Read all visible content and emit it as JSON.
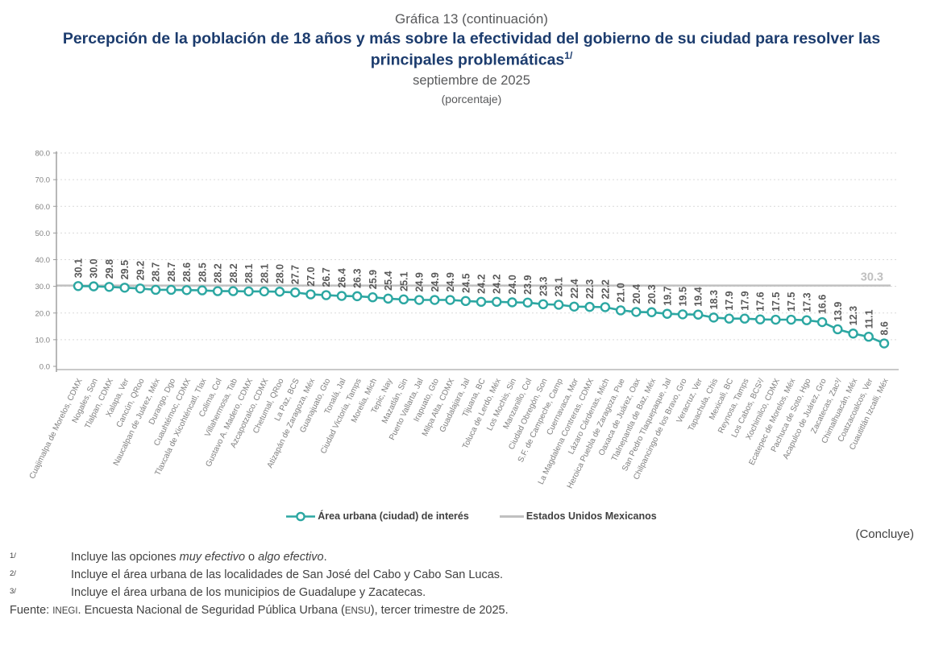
{
  "header": {
    "pretitle": "Gráfica 13 (continuación)",
    "title": "Percepción de la población de 18 años y más sobre la efectividad del gobierno de su ciudad para resolver las principales problemáticas",
    "title_sup": "1/",
    "subtitle": "septiembre de 2025",
    "unit": "(porcentaje)"
  },
  "chart_data": {
    "type": "line",
    "title": "Percepción de la población de 18 años y más sobre la efectividad del gobierno de su ciudad para resolver las principales problemáticas, septiembre de 2025 (porcentaje)",
    "xlabel": "",
    "ylabel": "",
    "ylim": [
      0,
      80
    ],
    "yticks": [
      0,
      10,
      20,
      30,
      40,
      50,
      60,
      70,
      80
    ],
    "grid": "horizontal-dashed",
    "legend_position": "bottom",
    "value_labels": "rotated-90-above-points",
    "categories": [
      "Cuajimalpa de Morelos, CDMX",
      "Nogales, Son",
      "Tlalpan, CDMX",
      "Xalapa, Ver",
      "Cancún, QRoo",
      "Naucalpan de Juárez, Méx",
      "Durango, Dgo",
      "Cuauhtémoc, CDMX",
      "Tlaxcala de Xicohténcatl, Tlax",
      "Colima, Col",
      "Villahermosa, Tab",
      "Gustavo A. Madero, CDMX",
      "Azcapotzalco, CDMX",
      "Chetumal, QRoo",
      "La Paz, BCS",
      "Atizapán de Zaragoza, Méx",
      "Guanajuato, Gto",
      "Tonalá, Jal",
      "Ciudad Victoria, Tamps",
      "Morelia, Mich",
      "Tepic, Nay",
      "Mazatlán, Sin",
      "Puerto Vallarta, Jal",
      "Irapuato, Gto",
      "Milpa Alta, CDMX",
      "Guadalajara, Jal",
      "Tijuana, BC",
      "Toluca de Lerdo, Méx",
      "Los Mochis, Sin",
      "Manzanillo, Col",
      "Ciudad Obregón, Son",
      "S.F. de Campeche, Camp",
      "Cuernavaca, Mor",
      "La Magdalena Contreras, CDMX",
      "Lázaro Cárdenas, Mich",
      "Heroica Puebla de Zaragoza, Pue",
      "Oaxaca de Juárez, Oax",
      "Tlalnepantla de Baz, Méx",
      "San Pedro Tlaquepaque, Jal",
      "Chilpancingo de los Bravo, Gro",
      "Veracruz, Ver",
      "Tapachula, Chis",
      "Mexicali, BC",
      "Reynosa, Tamps",
      "Los Cabos, BCS²/",
      "Xochimilco, CDMX",
      "Ecatepec de Morelos, Méx",
      "Pachuca de Soto, Hgo",
      "Acapulco de Juárez, Gro",
      "Zacatecas, Zac³/",
      "Chimalhuacán, Méx",
      "Coatzacoalcos, Ver",
      "Cuautitlán Izcalli, Méx"
    ],
    "series": [
      {
        "name": "Área urbana (ciudad) de interés",
        "type": "line",
        "marker": "open-circle",
        "color": "#2ca7a2",
        "values": [
          30.1,
          30.0,
          29.8,
          29.5,
          29.2,
          28.7,
          28.7,
          28.6,
          28.5,
          28.2,
          28.2,
          28.1,
          28.1,
          28.0,
          27.7,
          27.0,
          26.7,
          26.4,
          26.3,
          25.9,
          25.4,
          25.1,
          24.9,
          24.9,
          24.9,
          24.5,
          24.2,
          24.2,
          24.0,
          23.9,
          23.3,
          23.1,
          22.4,
          22.3,
          22.2,
          21.0,
          20.4,
          20.3,
          19.7,
          19.5,
          19.4,
          18.3,
          17.9,
          17.9,
          17.6,
          17.5,
          17.5,
          17.3,
          16.6,
          13.9,
          12.3,
          11.1,
          8.6
        ]
      },
      {
        "name": "Estados Unidos Mexicanos",
        "type": "reference-hline",
        "color": "#c0c0c0",
        "value": 30.3
      }
    ],
    "colors": {
      "value_label": "#595959",
      "axis_label": "#7f7f7f",
      "gridline": "#d9d9d9",
      "axis_line": "#9a9a9a",
      "title_navy": "#1c3c6e",
      "subtitle_gray": "#58595b"
    }
  },
  "concluye": "(Concluye)",
  "footnotes": {
    "fn1": {
      "marker": "1/",
      "part1": "Incluye las opciones ",
      "italic1": "muy efectivo",
      "part2": " o ",
      "italic2": "algo efectivo",
      "part3": "."
    },
    "fn2": {
      "marker": "2/",
      "text": "Incluye el área urbana de las localidades de San José del Cabo y Cabo San Lucas."
    },
    "fn3": {
      "marker": "3/",
      "text": "Incluye el área urbana de los municipios de Guadalupe y Zacatecas."
    }
  },
  "source": {
    "part1": "Fuente: ",
    "acr1": "INEGI",
    "part2": ". Encuesta Nacional de Seguridad Pública Urbana (",
    "acr2": "ENSU",
    "part3": "), tercer trimestre de 2025."
  }
}
